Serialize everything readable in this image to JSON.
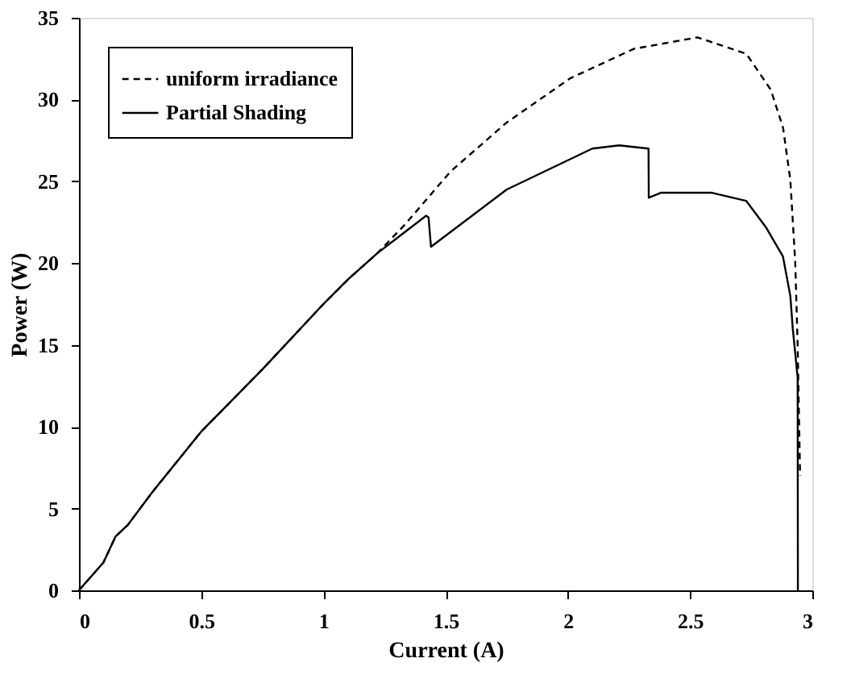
{
  "chart_data": {
    "type": "line",
    "xlabel": "Current (A)",
    "ylabel": "Power (W)",
    "xlim": [
      0,
      3
    ],
    "ylim": [
      0,
      35
    ],
    "xticks": [
      0,
      0.5,
      1,
      1.5,
      2,
      2.5,
      3
    ],
    "yticks": [
      0,
      5,
      10,
      15,
      20,
      25,
      30,
      35
    ],
    "grid": false,
    "legend": "top left",
    "series": [
      {
        "name": "uniform irradiance",
        "color": "#000000",
        "line_style": "dashed",
        "x": [
          0,
          0.1,
          0.15,
          0.2,
          0.3,
          0.5,
          0.75,
          1,
          1.1,
          1.22,
          1.33,
          1.52,
          1.75,
          2.01,
          2.27,
          2.53,
          2.73,
          2.83,
          2.88,
          2.91,
          2.93,
          2.94,
          2.95
        ],
        "values": [
          0,
          1.7,
          3.3,
          4,
          6,
          9.7,
          13.5,
          17.5,
          19,
          20.6,
          22.3,
          25.6,
          28.6,
          31.3,
          33.1,
          33.8,
          32.8,
          30.6,
          28.3,
          25.1,
          20.1,
          15,
          7
        ]
      },
      {
        "name": "Partial Shading",
        "color": "#000000",
        "line_style": "solid",
        "x": [
          0,
          0.1,
          0.15,
          0.2,
          0.3,
          0.5,
          0.75,
          1,
          1.1,
          1.22,
          1.42,
          1.43,
          1.44,
          1.75,
          2.1,
          2.21,
          2.33,
          2.331,
          2.38,
          2.59,
          2.73,
          2.81,
          2.88,
          2.91,
          2.92,
          2.94,
          2.941
        ],
        "values": [
          0,
          1.7,
          3.3,
          4,
          6,
          9.7,
          13.5,
          17.5,
          19,
          20.6,
          22.9,
          22.8,
          21,
          24.5,
          27,
          27.2,
          27,
          24,
          24.3,
          24.3,
          23.8,
          22.2,
          20.4,
          18,
          16,
          13,
          0
        ]
      }
    ]
  }
}
